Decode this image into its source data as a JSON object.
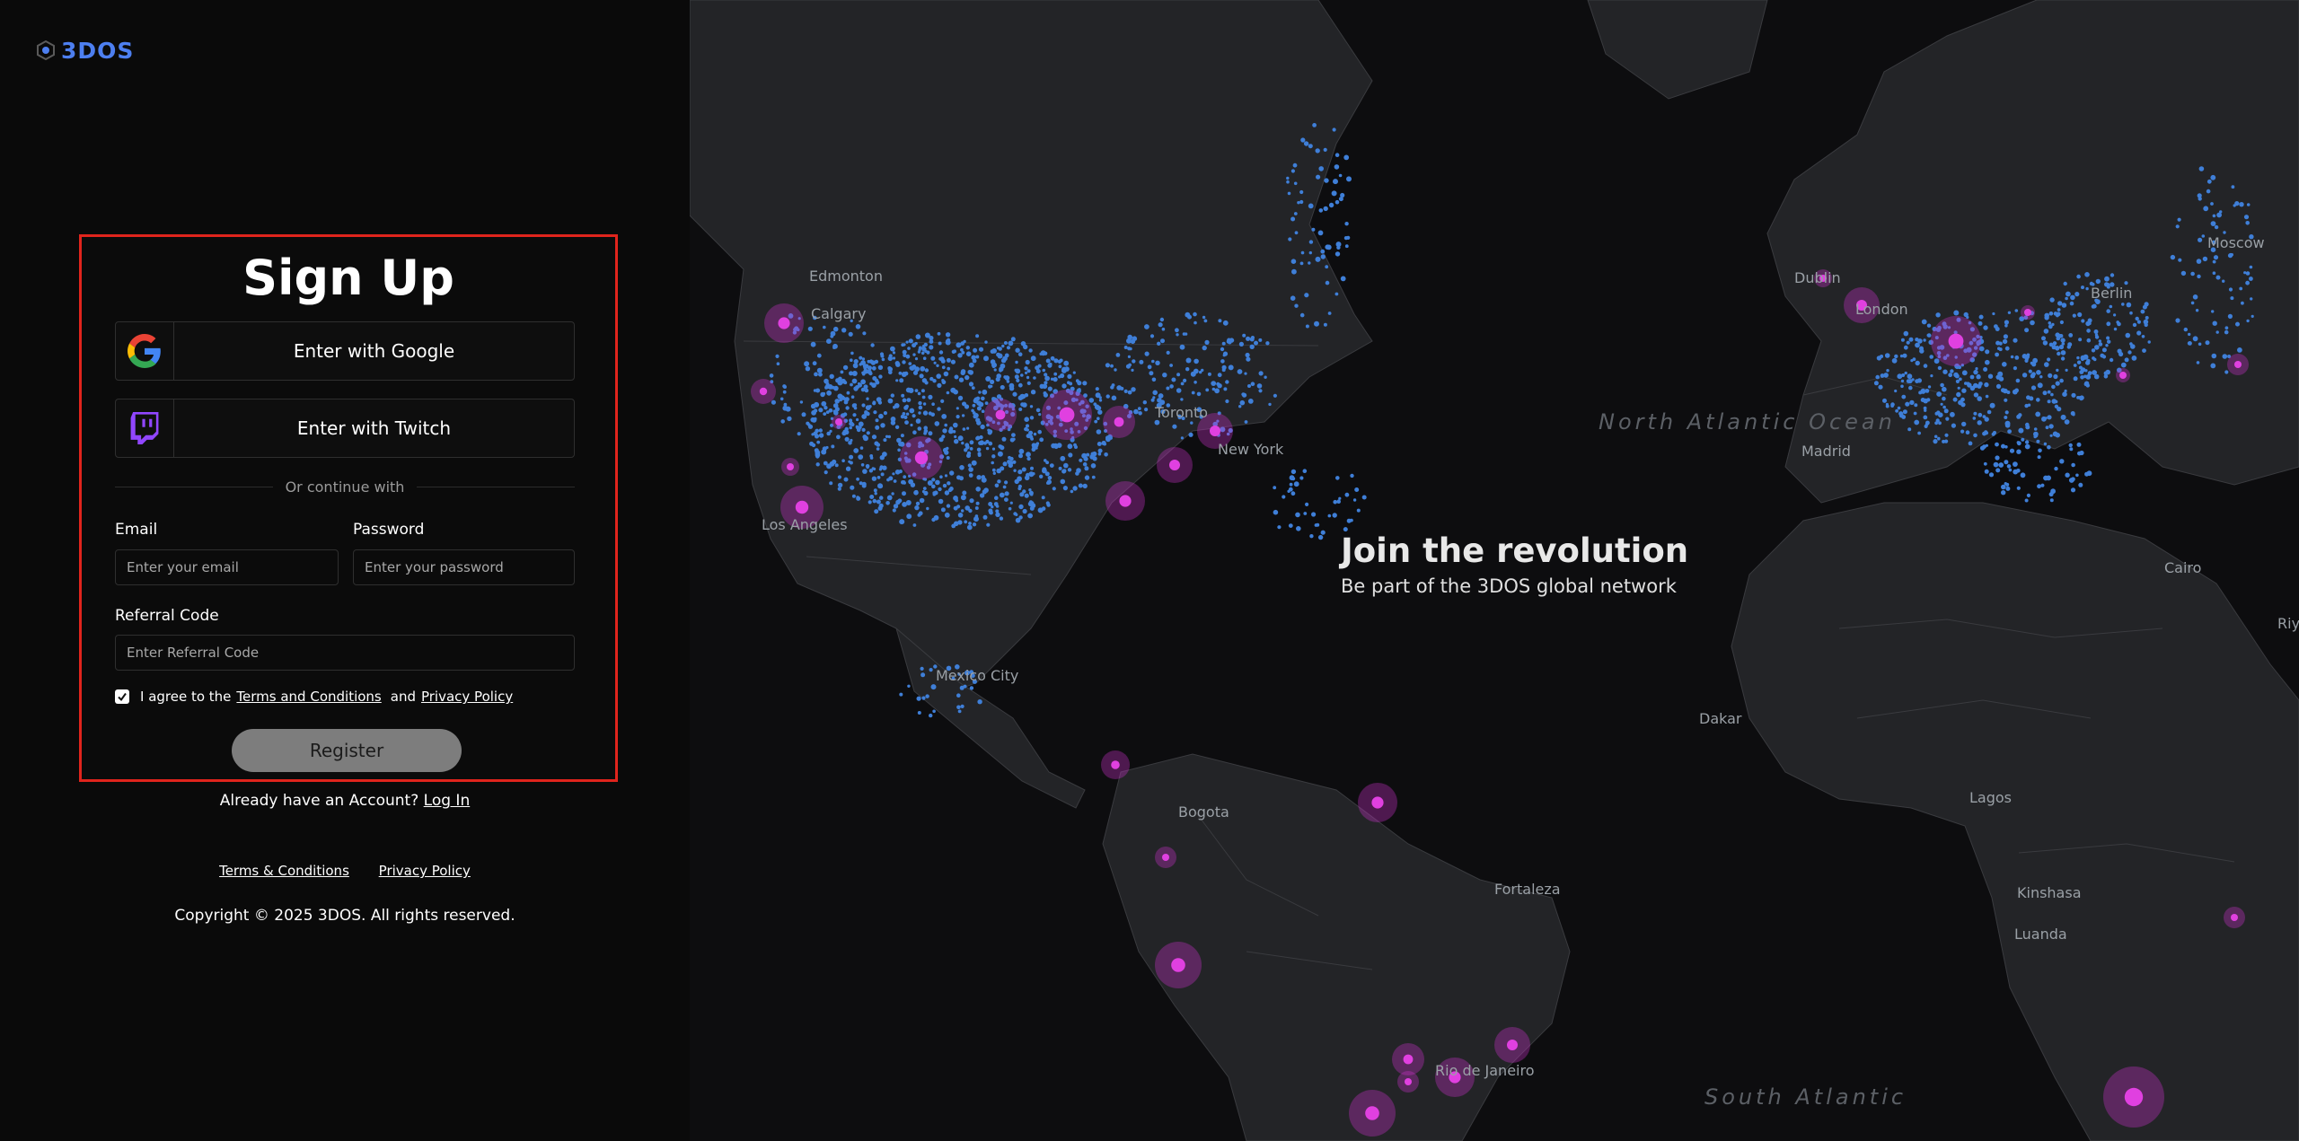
{
  "brand": {
    "logo_text": "3DOS",
    "accent": "#4d7ff0"
  },
  "signup": {
    "title": "Sign Up",
    "google_label": "Enter with Google",
    "twitch_label": "Enter with Twitch",
    "divider_text": "Or continue with",
    "email_label": "Email",
    "email_placeholder": "Enter your email",
    "password_label": "Password",
    "password_placeholder": "Enter your password",
    "referral_label": "Referral Code",
    "referral_placeholder": "Enter Referral Code",
    "agree_prefix": "I agree to the",
    "terms_link": "Terms and Conditions",
    "agree_and": "and",
    "privacy_link": "Privacy Policy",
    "agreed": true,
    "register_label": "Register"
  },
  "login": {
    "prompt": "Already have an Account?",
    "link": "Log In"
  },
  "footer": {
    "terms": "Terms & Conditions",
    "privacy": "Privacy Policy",
    "copyright": "Copyright © 2025 3DOS. All rights reserved."
  },
  "hero": {
    "title": "Join the revolution",
    "subtitle": "Be part of the 3DOS global network"
  },
  "map": {
    "city_labels": [
      "Edmonton",
      "Calgary",
      "Los Angeles",
      "Toronto",
      "New York",
      "Mexico City",
      "Bogota",
      "Fortaleza",
      "Rio de Janeiro",
      "Dakar",
      "Lagos",
      "Kinshasa",
      "Luanda",
      "Madrid",
      "Berlin",
      "London",
      "Dublin",
      "Moscow",
      "Cairo",
      "Riyadh"
    ],
    "ocean_labels": [
      "North Atlantic Ocean",
      "South Atlantic"
    ],
    "colors": {
      "land": "#232427",
      "ocean": "#0d0d0f",
      "node": "#3f7fd8",
      "hotspot": "#d838d8"
    }
  }
}
